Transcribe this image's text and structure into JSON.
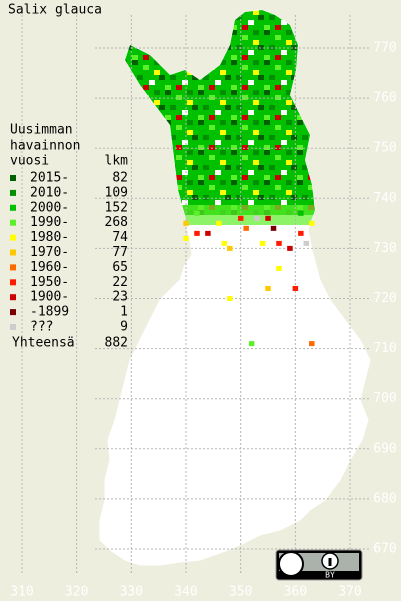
{
  "title": "Salix glauca",
  "legend": {
    "heading": [
      "Uusimman",
      "havainnon",
      "vuosi"
    ],
    "count_heading": "lkm",
    "entries": [
      {
        "label": "2015-",
        "count": 82,
        "color": "#006000"
      },
      {
        "label": "2010-",
        "count": 109,
        "color": "#008f00"
      },
      {
        "label": "2000-",
        "count": 152,
        "color": "#00c000"
      },
      {
        "label": "1990-",
        "count": 268,
        "color": "#5cf02a"
      },
      {
        "label": "1980-",
        "count": 74,
        "color": "#ffff00"
      },
      {
        "label": "1970-",
        "count": 77,
        "color": "#ffc800"
      },
      {
        "label": "1960-",
        "count": 65,
        "color": "#ff6a00"
      },
      {
        "label": "1950-",
        "count": 22,
        "color": "#ff1a00"
      },
      {
        "label": "1900-",
        "count": 23,
        "color": "#cc0000"
      },
      {
        "label": "-1899",
        "count": 1,
        "color": "#7a0000"
      },
      {
        "label": "???",
        "count": 9,
        "color": "#cccccc"
      }
    ],
    "total_label": "Yhteensä",
    "total": 882
  },
  "axes": {
    "xticks": [
      310,
      320,
      330,
      340,
      350,
      360,
      370
    ],
    "yticks": [
      670,
      680,
      690,
      700,
      710,
      720,
      730,
      740,
      750,
      760,
      770
    ]
  },
  "squares": [
    [
      340,
      732,
      4
    ],
    [
      342,
      733,
      7
    ],
    [
      344,
      733,
      8
    ],
    [
      347,
      731,
      4
    ],
    [
      348,
      730,
      5
    ],
    [
      354,
      731,
      4
    ],
    [
      357,
      731,
      7
    ],
    [
      359,
      730,
      8
    ],
    [
      362,
      731,
      10
    ],
    [
      361,
      733,
      7
    ],
    [
      357,
      726,
      4
    ],
    [
      355,
      722,
      5
    ],
    [
      360,
      722,
      7
    ],
    [
      348,
      720,
      4
    ],
    [
      363,
      711,
      6
    ],
    [
      352,
      711,
      3
    ],
    [
      355,
      736,
      8
    ],
    [
      353,
      736,
      10
    ],
    [
      350,
      736,
      7
    ],
    [
      346,
      735,
      4
    ],
    [
      342,
      737,
      3
    ],
    [
      340,
      735,
      5
    ],
    [
      361,
      737,
      2
    ],
    [
      363,
      735,
      4
    ],
    [
      356,
      734,
      9
    ],
    [
      351,
      734,
      6
    ]
  ],
  "badge": "BY"
}
